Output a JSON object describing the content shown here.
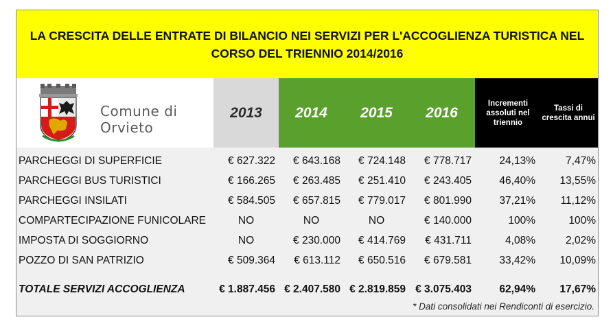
{
  "title": "LA CRESCITA DELLE ENTRATE DI BILANCIO NEI SERVIZI PER L'ACCOGLIENZA TURISTICA NEL CORSO DEL TRIENNIO 2014/2016",
  "logo": {
    "line1": "Comune di",
    "line2": "Orvieto"
  },
  "headers": {
    "years": [
      "2013",
      "2014",
      "2015",
      "2016"
    ],
    "increments": "Incrementi assoluti nel triennio",
    "rates": "Tassi di crescita annui"
  },
  "rows": [
    {
      "label": "PARCHEGGI DI SUPERFICIE",
      "v2013": "€ 627.322",
      "v2014": "€ 643.168",
      "v2015": "€ 724.148",
      "v2016": "€ 778.717",
      "increment": "24,13%",
      "rate": "7,47%"
    },
    {
      "label": "PARCHEGGI BUS TURISTICI",
      "v2013": "€ 166.265",
      "v2014": "€ 263.485",
      "v2015": "€ 251.410",
      "v2016": "€ 243.405",
      "increment": "46,40%",
      "rate": "13,55%"
    },
    {
      "label": "PARCHEGGI INSILATI",
      "v2013": "€ 584.505",
      "v2014": "€ 657.815",
      "v2015": "€ 779.017",
      "v2016": "€ 801.990",
      "increment": "37,21%",
      "rate": "11,12%"
    },
    {
      "label": "COMPARTECIPAZIONE FUNICOLARE",
      "v2013": "NO",
      "v2014": "NO",
      "v2015": "NO",
      "v2016": "€ 140.000",
      "increment": "100%",
      "rate": "100%"
    },
    {
      "label": "IMPOSTA DI SOGGIORNO",
      "v2013": "NO",
      "v2014": "€ 230.000",
      "v2015": "€ 414.769",
      "v2016": "€ 431.711",
      "increment": "4,08%",
      "rate": "2,02%"
    },
    {
      "label": "POZZO DI SAN PATRIZIO",
      "v2013": "€ 509.364",
      "v2014": "€ 613.112",
      "v2015": "€ 650.516",
      "v2016": "€ 679.581",
      "increment": "33,42%",
      "rate": "10,09%"
    }
  ],
  "total": {
    "label": "TOTALE SERVIZI ACCOGLIENZA",
    "v2013": "€ 1.887.456",
    "v2014": "€ 2.407.580",
    "v2015": "€ 2.819.859",
    "v2016": "€ 3.075.403",
    "increment": "62,94%",
    "rate": "17,67%"
  },
  "footnote": "* Dati consolidati nei Rendiconti di esercizio.",
  "colors": {
    "title_bg": "#ffff00",
    "year2013_bg": "#d9d9d9",
    "years_green_bg": "#5aa02c",
    "black_header_bg": "#000000",
    "body_bg": "#f0f0f0"
  },
  "icons": {
    "logo": "orvieto-coat-of-arms-icon"
  }
}
